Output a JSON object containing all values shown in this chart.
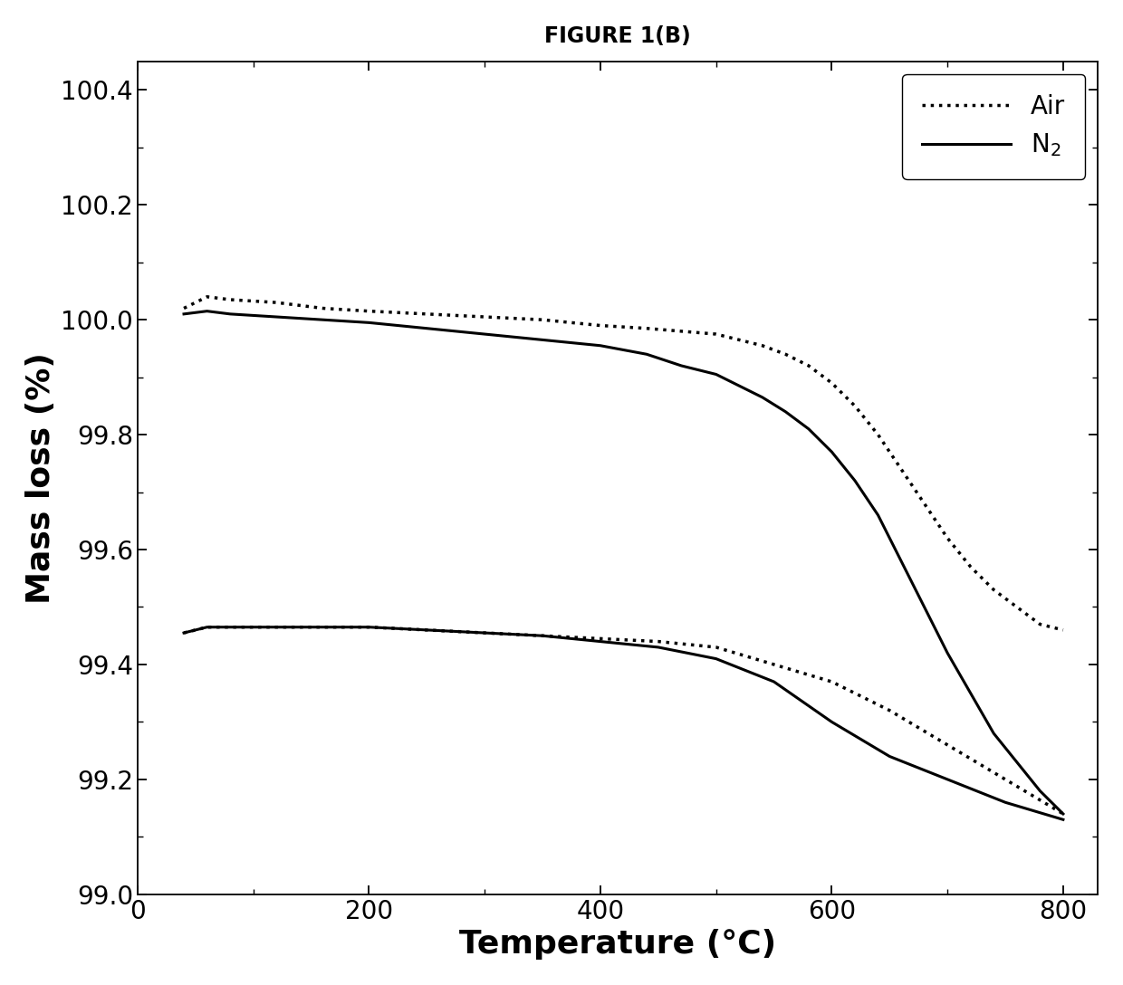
{
  "title": "FIGURE 1(B)",
  "xlabel": "Temperature (°C)",
  "ylabel": "Mass loss (%)",
  "xlim": [
    0,
    830
  ],
  "ylim": [
    99.0,
    100.45
  ],
  "xticks": [
    0,
    200,
    400,
    600,
    800
  ],
  "yticks": [
    99.0,
    99.2,
    99.4,
    99.6,
    99.8,
    100.0,
    100.2,
    100.4
  ],
  "air_upper_x": [
    40,
    60,
    80,
    120,
    160,
    200,
    250,
    300,
    350,
    400,
    440,
    470,
    500,
    520,
    540,
    560,
    580,
    600,
    620,
    640,
    660,
    680,
    700,
    720,
    740,
    760,
    780,
    800
  ],
  "air_upper_y": [
    100.02,
    100.04,
    100.035,
    100.03,
    100.02,
    100.015,
    100.01,
    100.005,
    100.0,
    99.99,
    99.985,
    99.98,
    99.975,
    99.965,
    99.955,
    99.94,
    99.92,
    99.89,
    99.85,
    99.8,
    99.74,
    99.68,
    99.62,
    99.57,
    99.53,
    99.5,
    99.47,
    99.46
  ],
  "n2_upper_x": [
    40,
    60,
    80,
    120,
    160,
    200,
    250,
    300,
    350,
    400,
    440,
    470,
    500,
    520,
    540,
    560,
    580,
    600,
    620,
    640,
    660,
    680,
    700,
    720,
    740,
    760,
    780,
    800
  ],
  "n2_upper_y": [
    100.01,
    100.015,
    100.01,
    100.005,
    100.0,
    99.995,
    99.985,
    99.975,
    99.965,
    99.955,
    99.94,
    99.92,
    99.905,
    99.885,
    99.865,
    99.84,
    99.81,
    99.77,
    99.72,
    99.66,
    99.58,
    99.5,
    99.42,
    99.35,
    99.28,
    99.23,
    99.18,
    99.14
  ],
  "air_lower_x": [
    40,
    60,
    100,
    150,
    200,
    250,
    300,
    350,
    400,
    450,
    500,
    550,
    600,
    650,
    700,
    750,
    800
  ],
  "air_lower_y": [
    99.455,
    99.465,
    99.465,
    99.465,
    99.465,
    99.46,
    99.455,
    99.45,
    99.445,
    99.44,
    99.43,
    99.4,
    99.37,
    99.32,
    99.26,
    99.2,
    99.14
  ],
  "n2_lower_x": [
    40,
    60,
    100,
    150,
    200,
    250,
    300,
    350,
    400,
    450,
    500,
    550,
    600,
    650,
    700,
    750,
    800
  ],
  "n2_lower_y": [
    99.455,
    99.465,
    99.465,
    99.465,
    99.465,
    99.46,
    99.455,
    99.45,
    99.44,
    99.43,
    99.41,
    99.37,
    99.3,
    99.24,
    99.2,
    99.16,
    99.13
  ],
  "line_color": "#000000",
  "background_color": "#ffffff",
  "legend_air": "Air",
  "legend_n2": "N$_2$",
  "title_fontsize": 17,
  "axis_label_fontsize": 26,
  "tick_fontsize": 20,
  "legend_fontsize": 20,
  "linewidth": 2.2
}
